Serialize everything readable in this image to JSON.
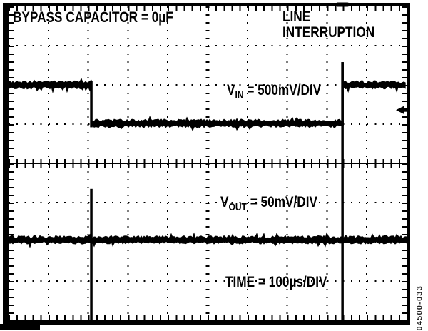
{
  "labels": {
    "bypass": "BYPASS CAPACITOR = 0µF",
    "line_interruption": [
      "LINE",
      "INTERRUPTION"
    ],
    "vin": {
      "base": "V",
      "sub": "IN",
      "rest": " = 500mV/DIV"
    },
    "vout": {
      "base": "V",
      "sub": "OUT",
      "rest": " = 50mV/DIV"
    },
    "time": "TIME = 100µs/DIV",
    "figure_number": "04500-033"
  },
  "colors": {
    "ink": "#000000",
    "paper": "#ffffff",
    "figure_number_ink": "#222222"
  },
  "chart_data": {
    "type": "line",
    "subtype": "oscilloscope",
    "title": "BYPASS CAPACITOR = 0µF",
    "annotation": "LINE INTERRUPTION",
    "x_axis": {
      "label": "TIME = 100µs/DIV",
      "time_per_div": "100µs",
      "divisions": 10
    },
    "grid": {
      "x_divisions": 10,
      "y_divisions": 8,
      "minor_per_div": 5,
      "grid_on": true
    },
    "series": [
      {
        "name": "VIN",
        "scale": "500mV/DIV",
        "description": "Input supply: high, steps down 1 division (500mV) at 2.08 div (~208µs), steps back up at 8.39 div (~839µs)",
        "noise_halfwidth_div": 0.09,
        "segments": [
          {
            "from_div": 0,
            "to_div": 2.08,
            "level_div": 2.0
          },
          {
            "from_div": 2.08,
            "to_div": 8.39,
            "level_div": 2.98
          },
          {
            "from_div": 8.39,
            "to_div": 10,
            "level_div": 2.0
          }
        ],
        "edges": [
          {
            "at_div": 2.08,
            "top_div": 1.9,
            "bottom_div": 3.08
          },
          {
            "at_div": 8.39,
            "top_div": 1.42,
            "bottom_div": 3.05
          }
        ]
      },
      {
        "name": "VOUT",
        "scale": "50mV/DIV",
        "description": "Output: flat trace with narrow bipolar glitches at the interruption and recovery instants",
        "noise_halfwidth_div": 0.09,
        "segments": [
          {
            "from_div": 0,
            "to_div": 10,
            "level_div": 5.95
          }
        ],
        "edges": [
          {
            "at_div": 2.08,
            "top_div": 4.65,
            "bottom_div": 8.0
          },
          {
            "at_div": 8.39,
            "top_div": 1.42,
            "bottom_div": 8.0
          }
        ]
      }
    ],
    "markers": {
      "trigger_level_arrow": {
        "side": "right",
        "y_div": 2.64
      },
      "trigger_position": {
        "side": "top",
        "x_div": 8.39
      }
    }
  }
}
